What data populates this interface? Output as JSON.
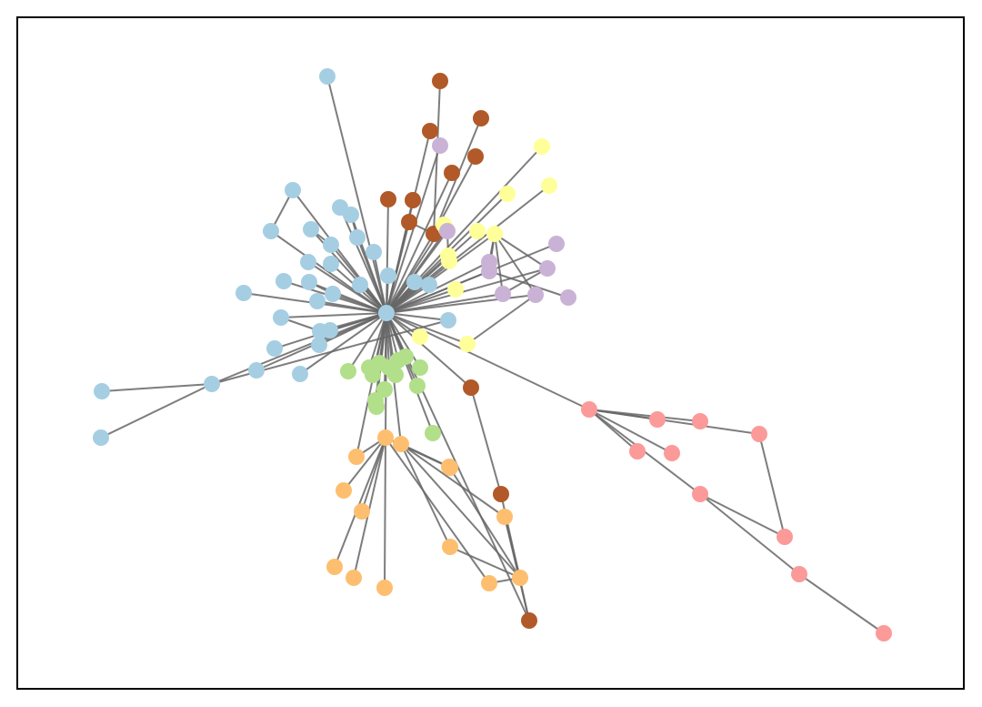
{
  "graph": {
    "colors": {
      "blue": "#a6cee3",
      "brown": "#b15928",
      "yellow": "#ffff99",
      "purple": "#cab2d6",
      "green": "#b2df8a",
      "orange": "#fdbf6f",
      "pink": "#fb9a99",
      "edge": "#666666"
    },
    "nodes": [
      {
        "id": "hub",
        "group": "blue"
      },
      {
        "id": "b1",
        "group": "blue"
      },
      {
        "id": "b2",
        "group": "blue"
      },
      {
        "id": "b3",
        "group": "blue"
      },
      {
        "id": "b4",
        "group": "blue"
      },
      {
        "id": "b5",
        "group": "blue"
      },
      {
        "id": "b6",
        "group": "blue"
      },
      {
        "id": "b7",
        "group": "blue"
      },
      {
        "id": "b8",
        "group": "blue"
      },
      {
        "id": "b9",
        "group": "blue"
      },
      {
        "id": "b10",
        "group": "blue"
      },
      {
        "id": "b11",
        "group": "blue"
      },
      {
        "id": "b12",
        "group": "blue"
      },
      {
        "id": "b13",
        "group": "blue"
      },
      {
        "id": "b14",
        "group": "blue"
      },
      {
        "id": "b15",
        "group": "blue"
      },
      {
        "id": "b16",
        "group": "blue"
      },
      {
        "id": "b17",
        "group": "blue"
      },
      {
        "id": "b18",
        "group": "blue"
      },
      {
        "id": "b19",
        "group": "blue"
      },
      {
        "id": "b20",
        "group": "blue"
      },
      {
        "id": "b21",
        "group": "blue"
      },
      {
        "id": "b22",
        "group": "blue"
      },
      {
        "id": "b23",
        "group": "blue"
      },
      {
        "id": "b24",
        "group": "blue"
      },
      {
        "id": "b25",
        "group": "blue"
      },
      {
        "id": "b26",
        "group": "blue"
      },
      {
        "id": "b27",
        "group": "blue"
      },
      {
        "id": "b28",
        "group": "blue"
      },
      {
        "id": "b29",
        "group": "blue"
      },
      {
        "id": "b30",
        "group": "blue"
      },
      {
        "id": "b31",
        "group": "blue"
      },
      {
        "id": "r1",
        "group": "brown"
      },
      {
        "id": "r2",
        "group": "brown"
      },
      {
        "id": "r3",
        "group": "brown"
      },
      {
        "id": "r4",
        "group": "brown"
      },
      {
        "id": "r5",
        "group": "brown"
      },
      {
        "id": "r6",
        "group": "brown"
      },
      {
        "id": "r7",
        "group": "brown"
      },
      {
        "id": "r8",
        "group": "brown"
      },
      {
        "id": "r9",
        "group": "brown"
      },
      {
        "id": "r10",
        "group": "brown"
      },
      {
        "id": "r11",
        "group": "brown"
      },
      {
        "id": "r12",
        "group": "brown"
      },
      {
        "id": "y1",
        "group": "yellow"
      },
      {
        "id": "y2",
        "group": "yellow"
      },
      {
        "id": "y3",
        "group": "yellow"
      },
      {
        "id": "y4",
        "group": "yellow"
      },
      {
        "id": "y5",
        "group": "yellow"
      },
      {
        "id": "y6",
        "group": "yellow"
      },
      {
        "id": "y7",
        "group": "yellow"
      },
      {
        "id": "y8",
        "group": "yellow"
      },
      {
        "id": "y9",
        "group": "yellow"
      },
      {
        "id": "y10",
        "group": "yellow"
      },
      {
        "id": "y11",
        "group": "yellow"
      },
      {
        "id": "y12",
        "group": "yellow"
      },
      {
        "id": "p1",
        "group": "purple"
      },
      {
        "id": "p2",
        "group": "purple"
      },
      {
        "id": "p3",
        "group": "purple"
      },
      {
        "id": "p4",
        "group": "purple"
      },
      {
        "id": "p5",
        "group": "purple"
      },
      {
        "id": "p6",
        "group": "purple"
      },
      {
        "id": "p7",
        "group": "purple"
      },
      {
        "id": "p8",
        "group": "purple"
      },
      {
        "id": "p9",
        "group": "purple"
      },
      {
        "id": "g1",
        "group": "green"
      },
      {
        "id": "g2",
        "group": "green"
      },
      {
        "id": "g3",
        "group": "green"
      },
      {
        "id": "g4",
        "group": "green"
      },
      {
        "id": "g5",
        "group": "green"
      },
      {
        "id": "g6",
        "group": "green"
      },
      {
        "id": "g7",
        "group": "green"
      },
      {
        "id": "g8",
        "group": "green"
      },
      {
        "id": "g9",
        "group": "green"
      },
      {
        "id": "g10",
        "group": "green"
      },
      {
        "id": "g11",
        "group": "green"
      },
      {
        "id": "g12",
        "group": "green"
      },
      {
        "id": "g13",
        "group": "green"
      },
      {
        "id": "g14",
        "group": "green"
      },
      {
        "id": "o1",
        "group": "orange"
      },
      {
        "id": "o2",
        "group": "orange"
      },
      {
        "id": "o3",
        "group": "orange"
      },
      {
        "id": "o4",
        "group": "orange"
      },
      {
        "id": "o5",
        "group": "orange"
      },
      {
        "id": "o6",
        "group": "orange"
      },
      {
        "id": "o7",
        "group": "orange"
      },
      {
        "id": "o8",
        "group": "orange"
      },
      {
        "id": "o9",
        "group": "orange"
      },
      {
        "id": "o10",
        "group": "orange"
      },
      {
        "id": "o11",
        "group": "orange"
      },
      {
        "id": "o12",
        "group": "orange"
      },
      {
        "id": "o13",
        "group": "orange"
      },
      {
        "id": "o14",
        "group": "orange"
      },
      {
        "id": "k1",
        "group": "pink"
      },
      {
        "id": "k2",
        "group": "pink"
      },
      {
        "id": "k3",
        "group": "pink"
      },
      {
        "id": "k4",
        "group": "pink"
      },
      {
        "id": "k5",
        "group": "pink"
      },
      {
        "id": "k6",
        "group": "pink"
      },
      {
        "id": "k7",
        "group": "pink"
      },
      {
        "id": "k8",
        "group": "pink"
      },
      {
        "id": "k9",
        "group": "pink"
      },
      {
        "id": "k10",
        "group": "pink"
      }
    ],
    "edges": [
      [
        "hub",
        "b1"
      ],
      [
        "hub",
        "b2"
      ],
      [
        "hub",
        "b3"
      ],
      [
        "hub",
        "b4"
      ],
      [
        "hub",
        "b5"
      ],
      [
        "hub",
        "b6"
      ],
      [
        "hub",
        "b7"
      ],
      [
        "hub",
        "b8"
      ],
      [
        "hub",
        "b9"
      ],
      [
        "hub",
        "b10"
      ],
      [
        "hub",
        "b11"
      ],
      [
        "hub",
        "b12"
      ],
      [
        "hub",
        "b13"
      ],
      [
        "hub",
        "b14"
      ],
      [
        "hub",
        "b15"
      ],
      [
        "hub",
        "b16"
      ],
      [
        "hub",
        "b17"
      ],
      [
        "hub",
        "b18"
      ],
      [
        "hub",
        "b19"
      ],
      [
        "hub",
        "b20"
      ],
      [
        "hub",
        "b21"
      ],
      [
        "hub",
        "b22"
      ],
      [
        "hub",
        "b23"
      ],
      [
        "hub",
        "b24"
      ],
      [
        "hub",
        "b25"
      ],
      [
        "hub",
        "b26"
      ],
      [
        "hub",
        "b27"
      ],
      [
        "hub",
        "b28"
      ],
      [
        "hub",
        "b29"
      ],
      [
        "b29",
        "b30"
      ],
      [
        "b29",
        "b31"
      ],
      [
        "b28",
        "b29"
      ],
      [
        "b2",
        "b3"
      ],
      [
        "b4",
        "b5"
      ],
      [
        "b10",
        "b11"
      ],
      [
        "b13",
        "b14"
      ],
      [
        "b21",
        "b22"
      ],
      [
        "hub",
        "r3"
      ],
      [
        "hub",
        "r5"
      ],
      [
        "hub",
        "r6"
      ],
      [
        "hub",
        "r7"
      ],
      [
        "hub",
        "r8"
      ],
      [
        "hub",
        "r9"
      ],
      [
        "hub",
        "r10"
      ],
      [
        "r1",
        "r9"
      ],
      [
        "r2",
        "r9"
      ],
      [
        "r4",
        "r9"
      ],
      [
        "r8",
        "r9"
      ],
      [
        "hub",
        "r12"
      ],
      [
        "o12",
        "r12"
      ],
      [
        "r10",
        "r11"
      ],
      [
        "hub",
        "y1"
      ],
      [
        "hub",
        "y2"
      ],
      [
        "hub",
        "y3"
      ],
      [
        "hub",
        "y4"
      ],
      [
        "hub",
        "y5"
      ],
      [
        "hub",
        "y6"
      ],
      [
        "hub",
        "y7"
      ],
      [
        "hub",
        "y8"
      ],
      [
        "hub",
        "y9"
      ],
      [
        "hub",
        "y10"
      ],
      [
        "hub",
        "y11"
      ],
      [
        "hub",
        "y12"
      ],
      [
        "hub",
        "p1"
      ],
      [
        "hub",
        "p2"
      ],
      [
        "hub",
        "p3"
      ],
      [
        "hub",
        "p4"
      ],
      [
        "hub",
        "p5"
      ],
      [
        "hub",
        "p6"
      ],
      [
        "hub",
        "p7"
      ],
      [
        "hub",
        "p8"
      ],
      [
        "y5",
        "p4"
      ],
      [
        "y5",
        "p5"
      ],
      [
        "y5",
        "p6"
      ],
      [
        "y5",
        "p7"
      ],
      [
        "y5",
        "p8"
      ],
      [
        "p4",
        "p7"
      ],
      [
        "p6",
        "p9"
      ],
      [
        "y11",
        "p8"
      ],
      [
        "p2",
        "y7"
      ],
      [
        "r9",
        "p2"
      ],
      [
        "hub",
        "g1"
      ],
      [
        "hub",
        "g2"
      ],
      [
        "hub",
        "g3"
      ],
      [
        "hub",
        "g4"
      ],
      [
        "hub",
        "g5"
      ],
      [
        "hub",
        "g6"
      ],
      [
        "hub",
        "g7"
      ],
      [
        "hub",
        "g8"
      ],
      [
        "hub",
        "g9"
      ],
      [
        "hub",
        "g10"
      ],
      [
        "hub",
        "g11"
      ],
      [
        "hub",
        "g12"
      ],
      [
        "hub",
        "g13"
      ],
      [
        "hub",
        "g14"
      ],
      [
        "hub",
        "o1"
      ],
      [
        "hub",
        "o2"
      ],
      [
        "hub",
        "o3"
      ],
      [
        "o1",
        "o4"
      ],
      [
        "o1",
        "o5"
      ],
      [
        "o1",
        "o6"
      ],
      [
        "o1",
        "o7"
      ],
      [
        "o1",
        "o8"
      ],
      [
        "o1",
        "o9"
      ],
      [
        "o1",
        "o10"
      ],
      [
        "o3",
        "o11"
      ],
      [
        "o3",
        "o12"
      ],
      [
        "o3",
        "o13"
      ],
      [
        "o3",
        "o14"
      ],
      [
        "o11",
        "o14"
      ],
      [
        "o12",
        "o14"
      ],
      [
        "o13",
        "o14"
      ],
      [
        "o14",
        "o10"
      ],
      [
        "o2",
        "o1"
      ],
      [
        "r12",
        "r11"
      ],
      [
        "hub",
        "k1"
      ],
      [
        "k1",
        "k2"
      ],
      [
        "k1",
        "k3"
      ],
      [
        "k1",
        "k4"
      ],
      [
        "k1",
        "k5"
      ],
      [
        "k1",
        "k6"
      ],
      [
        "k1",
        "k7"
      ],
      [
        "k7",
        "k8"
      ],
      [
        "k7",
        "k9"
      ],
      [
        "k9",
        "k10"
      ],
      [
        "k4",
        "k8"
      ]
    ]
  }
}
